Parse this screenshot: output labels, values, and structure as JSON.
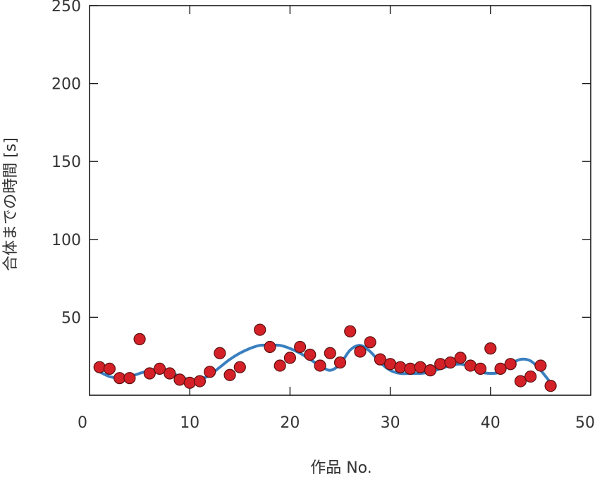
{
  "chart_data": {
    "type": "scatter",
    "xlabel": "作品 No.",
    "ylabel": "合体までの時間 [s]",
    "xlim": [
      0,
      50
    ],
    "ylim": [
      0,
      250
    ],
    "xticks": [
      "0",
      "10",
      "20",
      "30",
      "40",
      "50"
    ],
    "yticks": [
      "50",
      "100",
      "150",
      "200",
      "250"
    ],
    "grid": false,
    "colors": {
      "points": "#d42027",
      "point_edge": "#5a1010",
      "trend": "#3a7fbf",
      "axis": "#1a1a1a"
    },
    "series": [
      {
        "kind": "points",
        "x": [
          1,
          2,
          3,
          4,
          5,
          6,
          7,
          8,
          9,
          10,
          11,
          12,
          13,
          14,
          15,
          17,
          18,
          19,
          20,
          21,
          22,
          23,
          24,
          25,
          26,
          27,
          28,
          29,
          30,
          31,
          32,
          33,
          34,
          35,
          36,
          37,
          38,
          39,
          40,
          41,
          42,
          43,
          44,
          45,
          46
        ],
        "y": [
          18,
          17,
          11,
          11,
          36,
          14,
          17,
          14,
          10,
          8,
          9,
          15,
          27,
          13,
          18,
          42,
          31,
          19,
          24,
          31,
          26,
          19,
          27,
          21,
          41,
          28,
          34,
          23,
          20,
          18,
          17,
          18,
          16,
          20,
          21,
          24,
          19,
          17,
          30,
          17,
          20,
          9,
          12,
          19,
          6
        ]
      },
      {
        "kind": "trend",
        "x": [
          1,
          2,
          3,
          4,
          5,
          6,
          7,
          8,
          9,
          10,
          11,
          12,
          13,
          14,
          15,
          16,
          17,
          18,
          19,
          20,
          21,
          22,
          23,
          24,
          25,
          26,
          27,
          28,
          29,
          30,
          31,
          32,
          33,
          34,
          35,
          36,
          37,
          38,
          39,
          40,
          41,
          42,
          43,
          44,
          45,
          46
        ],
        "y": [
          15,
          12,
          11,
          12,
          14,
          16,
          17,
          15,
          12,
          10,
          10,
          13,
          18,
          23,
          27,
          30,
          32,
          32,
          32,
          30,
          27,
          23,
          19,
          16,
          20,
          29,
          32,
          28,
          21,
          16,
          14,
          14,
          14,
          15,
          17,
          19,
          20,
          18,
          15,
          14,
          15,
          20,
          23,
          22,
          16,
          8
        ]
      }
    ]
  }
}
